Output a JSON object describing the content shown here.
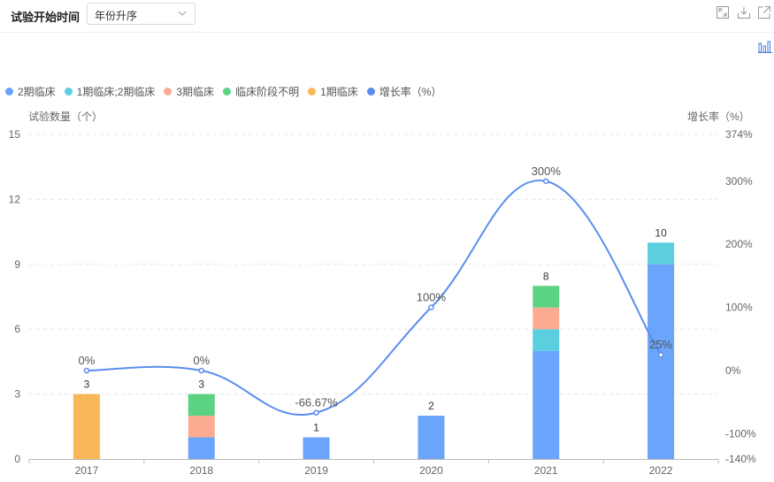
{
  "header": {
    "title": "试验开始时间",
    "sort_select": "年份升序"
  },
  "toolbar": {
    "icons": [
      "expand-icon",
      "download-icon",
      "external-link-icon"
    ],
    "chart_type_icon": "bar-chart-icon"
  },
  "chart_data": {
    "type": "bar",
    "stacked": true,
    "categories": [
      "2017",
      "2018",
      "2019",
      "2020",
      "2021",
      "2022"
    ],
    "series": [
      {
        "name": "2期临床",
        "color": "#6aa4fb",
        "values": [
          0,
          1,
          1,
          2,
          5,
          9
        ]
      },
      {
        "name": "1期临床;2期临床",
        "color": "#5bcee0",
        "values": [
          0,
          0,
          0,
          0,
          1,
          1
        ]
      },
      {
        "name": "3期临床",
        "color": "#fbab92",
        "values": [
          0,
          1,
          0,
          0,
          1,
          0
        ]
      },
      {
        "name": "临床阶段不明",
        "color": "#5bd381",
        "values": [
          0,
          1,
          0,
          0,
          1,
          0
        ]
      },
      {
        "name": "1期临床",
        "color": "#f8b857",
        "values": [
          3,
          0,
          0,
          0,
          0,
          0
        ]
      }
    ],
    "totals": [
      "3",
      "3",
      "1",
      "2",
      "8",
      "10"
    ],
    "line": {
      "name": "增长率（%）",
      "color": "#5b8def",
      "values": [
        0,
        0,
        -66.67,
        100,
        300,
        25
      ],
      "labels": [
        "0%",
        "0%",
        "-66.67%",
        "100%",
        "300%",
        "25%"
      ]
    },
    "ylabel": "试验数量（个）",
    "y2label": "增长率（%）",
    "ylim": [
      0,
      15
    ],
    "yticks": [
      "0",
      "3",
      "6",
      "9",
      "12",
      "15"
    ],
    "y2lim": [
      -140,
      374
    ],
    "y2ticks": [
      "-140%",
      "-100%",
      "0%",
      "100%",
      "200%",
      "300%",
      "374%"
    ],
    "y2tick_values": [
      -140,
      -100,
      0,
      100,
      200,
      300,
      374
    ],
    "grid": true,
    "legend_position": "top-left"
  }
}
